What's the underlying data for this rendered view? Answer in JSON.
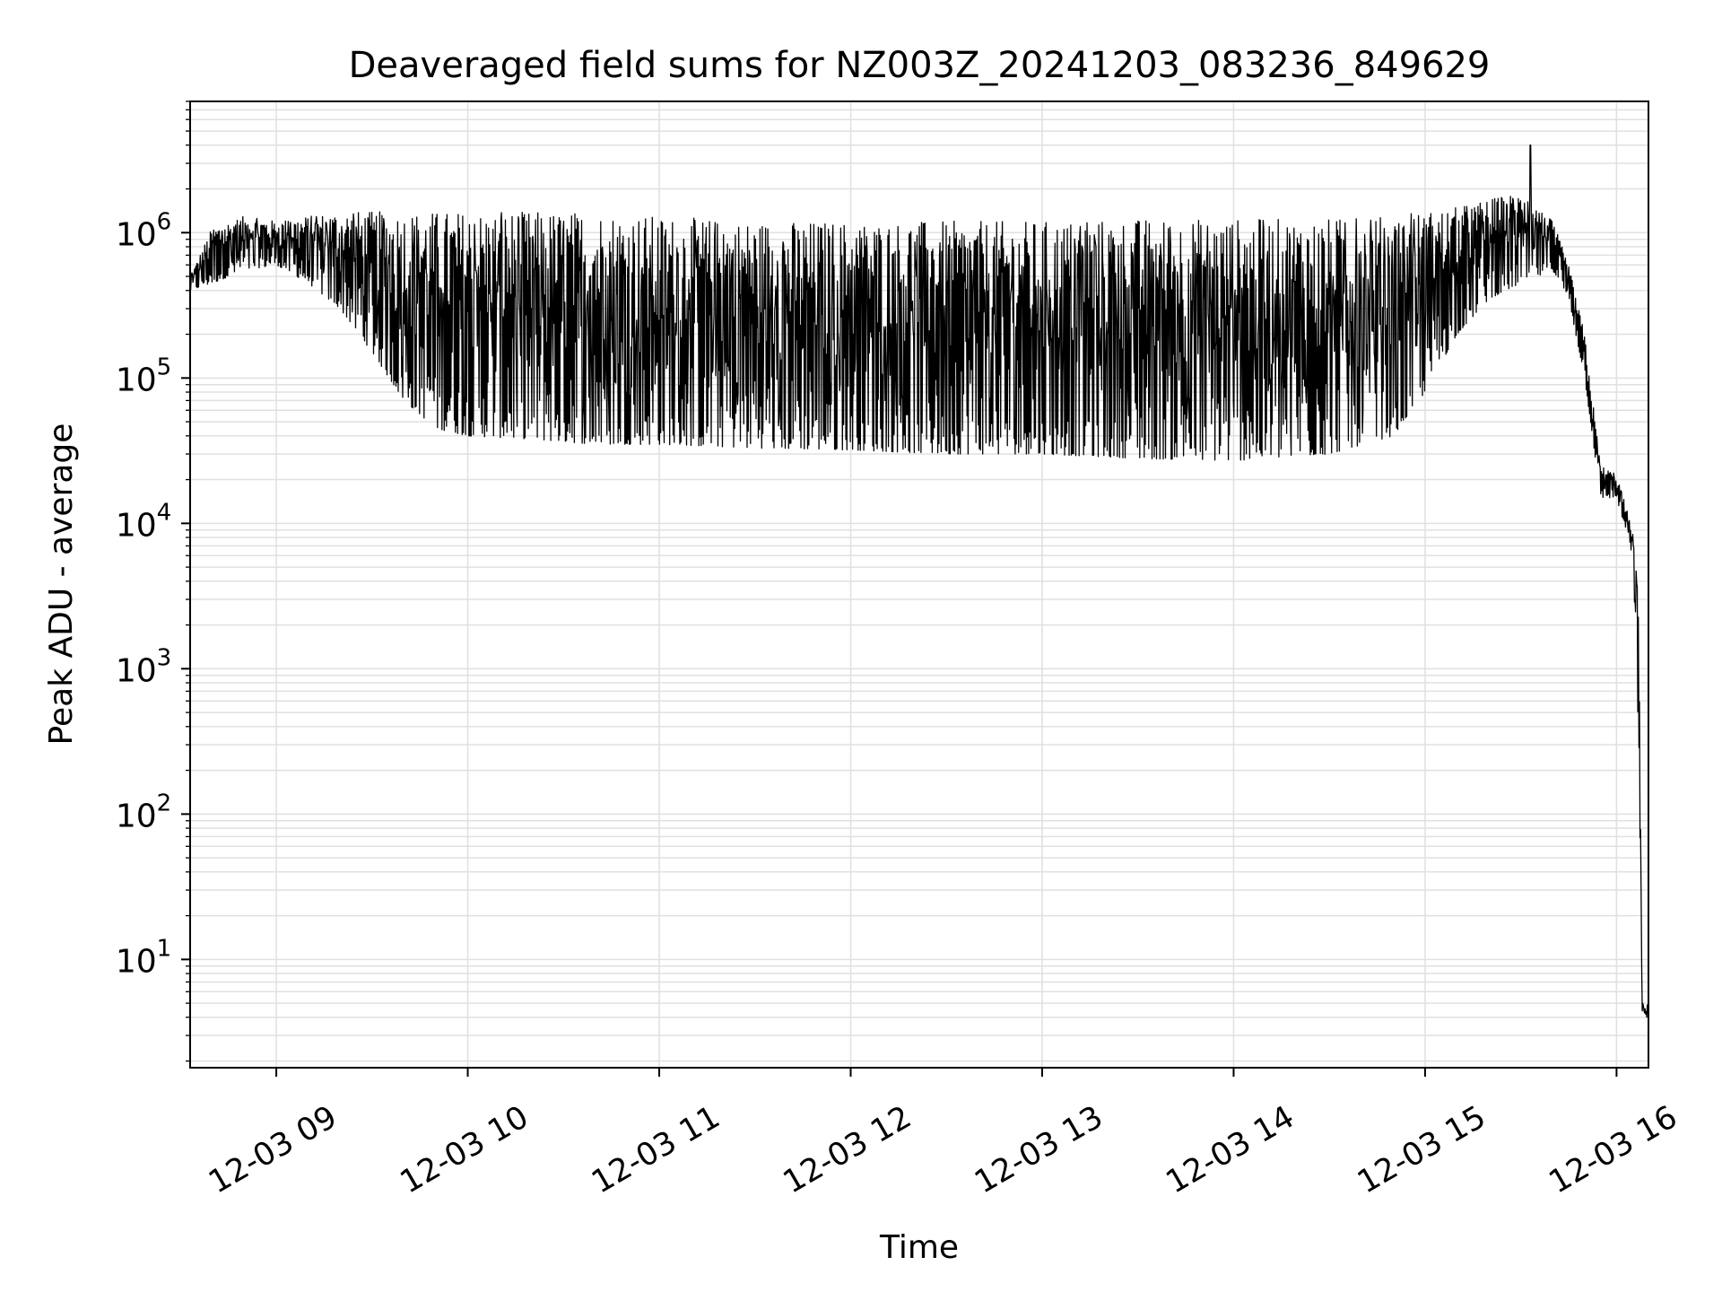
{
  "chart_data": {
    "type": "line",
    "title": "Deaveraged field sums for NZ003Z_20241203_083236_849629",
    "xlabel": "Time",
    "ylabel": "Peak ADU - average",
    "y_scale": "log",
    "xlim": [
      "2024-12-03 08:33",
      "2024-12-03 16:10"
    ],
    "ylim": [
      1.8,
      8000000
    ],
    "x_ticks": [
      "2024-12-03 09:00",
      "2024-12-03 10:00",
      "2024-12-03 11:00",
      "2024-12-03 12:00",
      "2024-12-03 13:00",
      "2024-12-03 14:00",
      "2024-12-03 15:00",
      "2024-12-03 16:00"
    ],
    "x_tick_labels": [
      "12-03 09",
      "12-03 10",
      "12-03 11",
      "12-03 12",
      "12-03 13",
      "12-03 14",
      "12-03 15",
      "12-03 16"
    ],
    "y_ticks": [
      10,
      100,
      1000,
      10000,
      100000,
      1000000
    ],
    "y_tick_labels": [
      {
        "base": "10",
        "exp": "1"
      },
      {
        "base": "10",
        "exp": "2"
      },
      {
        "base": "10",
        "exp": "3"
      },
      {
        "base": "10",
        "exp": "4"
      },
      {
        "base": "10",
        "exp": "5"
      },
      {
        "base": "10",
        "exp": "6"
      }
    ],
    "grid": "major and minor",
    "line_color": "#000000",
    "grid_color": "#e0e0e0",
    "series": [
      {
        "x": [
          "2024-12-03 08:33",
          "2024-12-03 08:40",
          "2024-12-03 08:50",
          "2024-12-03 09:00",
          "2024-12-03 09:10",
          "2024-12-03 09:20",
          "2024-12-03 09:30",
          "2024-12-03 09:40",
          "2024-12-03 09:50",
          "2024-12-03 10:00",
          "2024-12-03 10:20",
          "2024-12-03 10:40",
          "2024-12-03 11:00",
          "2024-12-03 11:30",
          "2024-12-03 12:00",
          "2024-12-03 12:30",
          "2024-12-03 13:00",
          "2024-12-03 13:30",
          "2024-12-03 14:00",
          "2024-12-03 14:30",
          "2024-12-03 14:50",
          "2024-12-03 15:00",
          "2024-12-03 15:10",
          "2024-12-03 15:20",
          "2024-12-03 15:30",
          "2024-12-03 15:40",
          "2024-12-03 15:45",
          "2024-12-03 15:50",
          "2024-12-03 15:55",
          "2024-12-03 16:00",
          "2024-12-03 16:05",
          "2024-12-03 16:07",
          "2024-12-03 16:08",
          "2024-12-03 16:10"
        ],
        "low": [
          400000,
          450000,
          550000,
          600000,
          450000,
          300000,
          150000,
          70000,
          45000,
          40000,
          38000,
          35000,
          35000,
          33000,
          32000,
          30000,
          30000,
          28000,
          27000,
          30000,
          40000,
          80000,
          200000,
          350000,
          450000,
          550000,
          350000,
          100000,
          15000,
          15000,
          6000,
          300,
          4,
          4
        ],
        "high": [
          500000,
          1100000,
          1300000,
          1200000,
          1300000,
          1400000,
          1400000,
          1400000,
          1400000,
          1400000,
          1400000,
          1400000,
          1300000,
          1200000,
          1200000,
          1200000,
          1200000,
          1250000,
          1250000,
          1250000,
          1300000,
          1400000,
          1500000,
          1700000,
          1900000,
          1200000,
          600000,
          200000,
          25000,
          22000,
          9000,
          3000,
          5,
          5
        ]
      }
    ],
    "peak": {
      "x": "2024-12-03 15:33",
      "y": 4000000
    }
  }
}
